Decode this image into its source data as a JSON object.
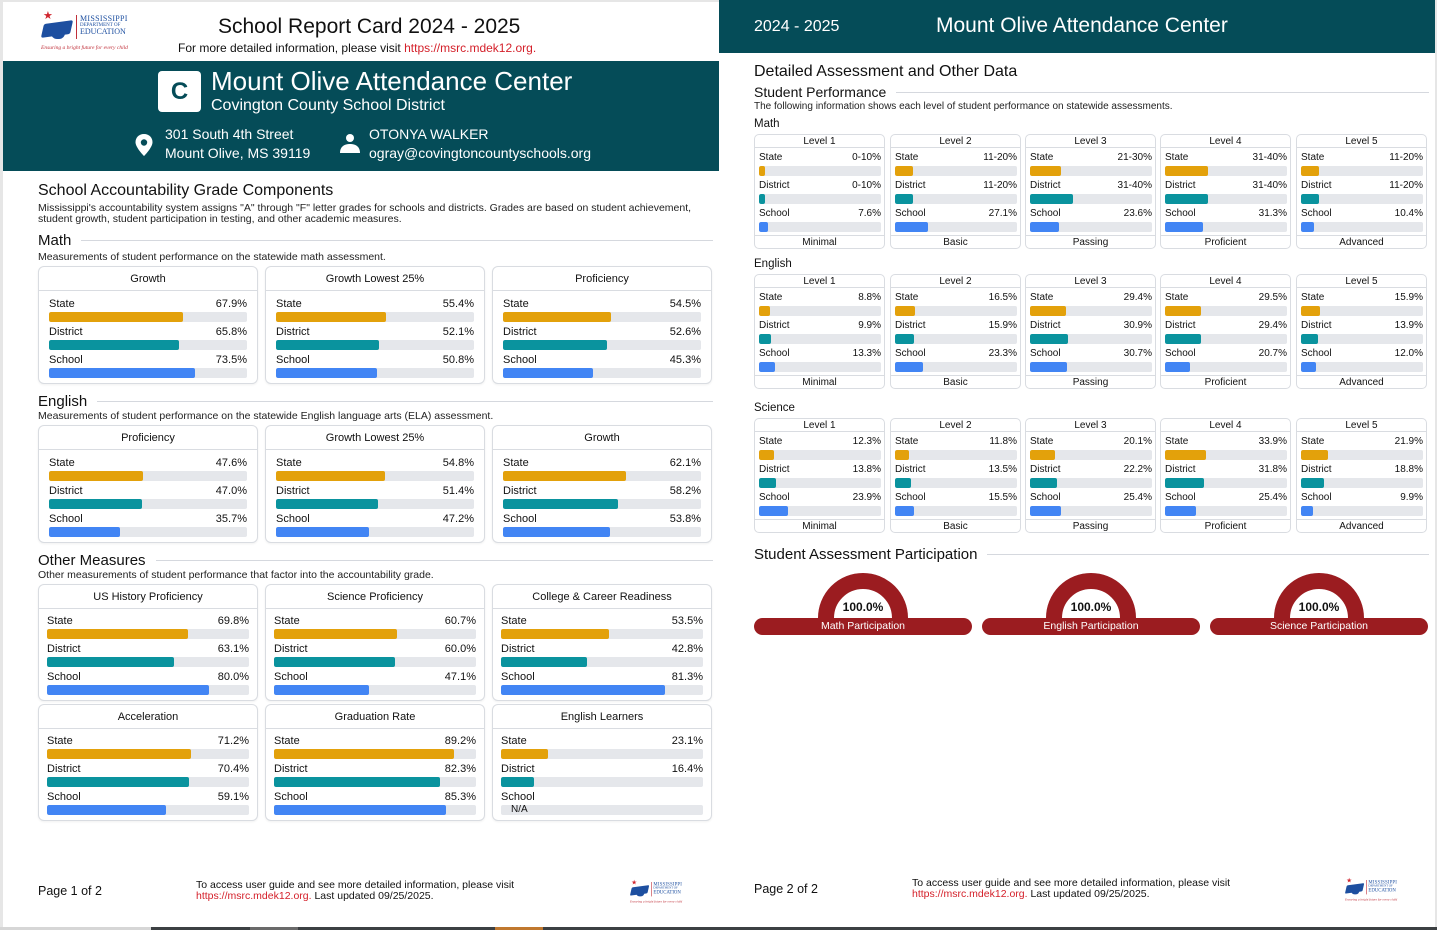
{
  "colors": {
    "brand": "#054c58",
    "state": "#e3a10b",
    "district": "#0a939e",
    "school": "#4285f4",
    "participation": "#9b1c20",
    "link": "#d4202a"
  },
  "logo": {
    "line1": "MISSISSIPPI",
    "line2": "DEPARTMENT OF",
    "line3": "EDUCATION",
    "tagline": "Ensuring a bright future for every child",
    "icon": "graduation-cap-icon"
  },
  "page1": {
    "title": "School Report Card 2024 - 2025",
    "subtitle_prefix": "For more detailed information, please visit ",
    "subtitle_link": "https://msrc.mdek12.org.",
    "grade": "C",
    "school_name": "Mount Olive Attendance Center",
    "district_name": "Covington County School District",
    "address_line1": "301 South 4th Street",
    "address_line2": "Mount Olive, MS 39119",
    "contact_name": "OTONYA WALKER",
    "contact_email": "ogray@covingtoncountyschools.org",
    "accountability": {
      "heading": "School Accountability Grade Components",
      "description": "Mississippi's accountability system assigns \"A\" through \"F\" letter grades for schools and districts. Grades are based on student achievement, student growth, student participation in testing, and other academic measures."
    },
    "sections": [
      {
        "title": "Math",
        "description": "Measurements of student performance on the statewide math assessment.",
        "cards": [
          {
            "title": "Growth",
            "rows": [
              {
                "label": "State",
                "value": "67.9%",
                "pct": 67.9
              },
              {
                "label": "District",
                "value": "65.8%",
                "pct": 65.8
              },
              {
                "label": "School",
                "value": "73.5%",
                "pct": 73.5
              }
            ]
          },
          {
            "title": "Growth Lowest 25%",
            "rows": [
              {
                "label": "State",
                "value": "55.4%",
                "pct": 55.4
              },
              {
                "label": "District",
                "value": "52.1%",
                "pct": 52.1
              },
              {
                "label": "School",
                "value": "50.8%",
                "pct": 50.8
              }
            ]
          },
          {
            "title": "Proficiency",
            "rows": [
              {
                "label": "State",
                "value": "54.5%",
                "pct": 54.5
              },
              {
                "label": "District",
                "value": "52.6%",
                "pct": 52.6
              },
              {
                "label": "School",
                "value": "45.3%",
                "pct": 45.3
              }
            ]
          }
        ]
      },
      {
        "title": "English",
        "description": "Measurements of student performance on the statewide English language arts (ELA) assessment.",
        "cards": [
          {
            "title": "Proficiency",
            "rows": [
              {
                "label": "State",
                "value": "47.6%",
                "pct": 47.6
              },
              {
                "label": "District",
                "value": "47.0%",
                "pct": 47.0
              },
              {
                "label": "School",
                "value": "35.7%",
                "pct": 35.7
              }
            ]
          },
          {
            "title": "Growth Lowest 25%",
            "rows": [
              {
                "label": "State",
                "value": "54.8%",
                "pct": 54.8
              },
              {
                "label": "District",
                "value": "51.4%",
                "pct": 51.4
              },
              {
                "label": "School",
                "value": "47.2%",
                "pct": 47.2
              }
            ]
          },
          {
            "title": "Growth",
            "rows": [
              {
                "label": "State",
                "value": "62.1%",
                "pct": 62.1
              },
              {
                "label": "District",
                "value": "58.2%",
                "pct": 58.2
              },
              {
                "label": "School",
                "value": "53.8%",
                "pct": 53.8
              }
            ]
          }
        ]
      },
      {
        "title": "Other Measures",
        "description": "Other measurements of student performance that factor into the accountability grade.",
        "cards": [
          {
            "title": "US History Proficiency",
            "rows": [
              {
                "label": "State",
                "value": "69.8%",
                "pct": 69.8
              },
              {
                "label": "District",
                "value": "63.1%",
                "pct": 63.1
              },
              {
                "label": "School",
                "value": "80.0%",
                "pct": 80.0
              }
            ]
          },
          {
            "title": "Science Proficiency",
            "rows": [
              {
                "label": "State",
                "value": "60.7%",
                "pct": 60.7
              },
              {
                "label": "District",
                "value": "60.0%",
                "pct": 60.0
              },
              {
                "label": "School",
                "value": "47.1%",
                "pct": 47.1
              }
            ]
          },
          {
            "title": "College & Career Readiness",
            "rows": [
              {
                "label": "State",
                "value": "53.5%",
                "pct": 53.5
              },
              {
                "label": "District",
                "value": "42.8%",
                "pct": 42.8
              },
              {
                "label": "School",
                "value": "81.3%",
                "pct": 81.3
              }
            ]
          },
          {
            "title": "Acceleration",
            "rows": [
              {
                "label": "State",
                "value": "71.2%",
                "pct": 71.2
              },
              {
                "label": "District",
                "value": "70.4%",
                "pct": 70.4
              },
              {
                "label": "School",
                "value": "59.1%",
                "pct": 59.1
              }
            ]
          },
          {
            "title": "Graduation Rate",
            "rows": [
              {
                "label": "State",
                "value": "89.2%",
                "pct": 89.2
              },
              {
                "label": "District",
                "value": "82.3%",
                "pct": 82.3
              },
              {
                "label": "School",
                "value": "85.3%",
                "pct": 85.3
              }
            ]
          },
          {
            "title": "English Learners",
            "rows": [
              {
                "label": "State",
                "value": "23.1%",
                "pct": 23.1
              },
              {
                "label": "District",
                "value": "16.4%",
                "pct": 16.4
              },
              {
                "label": "School",
                "value": "",
                "pct": null,
                "na": "N/A"
              }
            ]
          }
        ]
      }
    ],
    "footer": {
      "page": "Page 1 of 2",
      "text": "To access user guide and see more detailed information, please visit",
      "link": "https://msrc.mdek12.org.",
      "updated": " Last updated 09/25/2025."
    }
  },
  "page2": {
    "year": "2024 - 2025",
    "school_name": "Mount Olive Attendance Center",
    "heading": "Detailed Assessment and Other Data",
    "performance_title": "Student Performance",
    "performance_desc": "The following information shows each level of student performance on statewide assessments.",
    "subjects": [
      {
        "name": "Math",
        "levels": [
          {
            "level": "Level 1",
            "footer": "Minimal",
            "rows": [
              {
                "label": "State",
                "value": "0-10%",
                "pct": 5
              },
              {
                "label": "District",
                "value": "0-10%",
                "pct": 5
              },
              {
                "label": "School",
                "value": "7.6%",
                "pct": 7.6
              }
            ]
          },
          {
            "level": "Level 2",
            "footer": "Basic",
            "rows": [
              {
                "label": "State",
                "value": "11-20%",
                "pct": 15
              },
              {
                "label": "District",
                "value": "11-20%",
                "pct": 15
              },
              {
                "label": "School",
                "value": "27.1%",
                "pct": 27.1
              }
            ]
          },
          {
            "level": "Level 3",
            "footer": "Passing",
            "rows": [
              {
                "label": "State",
                "value": "21-30%",
                "pct": 25
              },
              {
                "label": "District",
                "value": "31-40%",
                "pct": 35
              },
              {
                "label": "School",
                "value": "23.6%",
                "pct": 23.6
              }
            ]
          },
          {
            "level": "Level 4",
            "footer": "Proficient",
            "rows": [
              {
                "label": "State",
                "value": "31-40%",
                "pct": 35
              },
              {
                "label": "District",
                "value": "31-40%",
                "pct": 35
              },
              {
                "label": "School",
                "value": "31.3%",
                "pct": 31.3
              }
            ]
          },
          {
            "level": "Level 5",
            "footer": "Advanced",
            "rows": [
              {
                "label": "State",
                "value": "11-20%",
                "pct": 15
              },
              {
                "label": "District",
                "value": "11-20%",
                "pct": 15
              },
              {
                "label": "School",
                "value": "10.4%",
                "pct": 10.4
              }
            ]
          }
        ]
      },
      {
        "name": "English",
        "levels": [
          {
            "level": "Level 1",
            "footer": "Minimal",
            "rows": [
              {
                "label": "State",
                "value": "8.8%",
                "pct": 8.8
              },
              {
                "label": "District",
                "value": "9.9%",
                "pct": 9.9
              },
              {
                "label": "School",
                "value": "13.3%",
                "pct": 13.3
              }
            ]
          },
          {
            "level": "Level 2",
            "footer": "Basic",
            "rows": [
              {
                "label": "State",
                "value": "16.5%",
                "pct": 16.5
              },
              {
                "label": "District",
                "value": "15.9%",
                "pct": 15.9
              },
              {
                "label": "School",
                "value": "23.3%",
                "pct": 23.3
              }
            ]
          },
          {
            "level": "Level 3",
            "footer": "Passing",
            "rows": [
              {
                "label": "State",
                "value": "29.4%",
                "pct": 29.4
              },
              {
                "label": "District",
                "value": "30.9%",
                "pct": 30.9
              },
              {
                "label": "School",
                "value": "30.7%",
                "pct": 30.7
              }
            ]
          },
          {
            "level": "Level 4",
            "footer": "Proficient",
            "rows": [
              {
                "label": "State",
                "value": "29.5%",
                "pct": 29.5
              },
              {
                "label": "District",
                "value": "29.4%",
                "pct": 29.4
              },
              {
                "label": "School",
                "value": "20.7%",
                "pct": 20.7
              }
            ]
          },
          {
            "level": "Level 5",
            "footer": "Advanced",
            "rows": [
              {
                "label": "State",
                "value": "15.9%",
                "pct": 15.9
              },
              {
                "label": "District",
                "value": "13.9%",
                "pct": 13.9
              },
              {
                "label": "School",
                "value": "12.0%",
                "pct": 12.0
              }
            ]
          }
        ]
      },
      {
        "name": "Science",
        "levels": [
          {
            "level": "Level 1",
            "footer": "Minimal",
            "rows": [
              {
                "label": "State",
                "value": "12.3%",
                "pct": 12.3
              },
              {
                "label": "District",
                "value": "13.8%",
                "pct": 13.8
              },
              {
                "label": "School",
                "value": "23.9%",
                "pct": 23.9
              }
            ]
          },
          {
            "level": "Level 2",
            "footer": "Basic",
            "rows": [
              {
                "label": "State",
                "value": "11.8%",
                "pct": 11.8
              },
              {
                "label": "District",
                "value": "13.5%",
                "pct": 13.5
              },
              {
                "label": "School",
                "value": "15.5%",
                "pct": 15.5
              }
            ]
          },
          {
            "level": "Level 3",
            "footer": "Passing",
            "rows": [
              {
                "label": "State",
                "value": "20.1%",
                "pct": 20.1
              },
              {
                "label": "District",
                "value": "22.2%",
                "pct": 22.2
              },
              {
                "label": "School",
                "value": "25.4%",
                "pct": 25.4
              }
            ]
          },
          {
            "level": "Level 4",
            "footer": "Proficient",
            "rows": [
              {
                "label": "State",
                "value": "33.9%",
                "pct": 33.9
              },
              {
                "label": "District",
                "value": "31.8%",
                "pct": 31.8
              },
              {
                "label": "School",
                "value": "25.4%",
                "pct": 25.4
              }
            ]
          },
          {
            "level": "Level 5",
            "footer": "Advanced",
            "rows": [
              {
                "label": "State",
                "value": "21.9%",
                "pct": 21.9
              },
              {
                "label": "District",
                "value": "18.8%",
                "pct": 18.8
              },
              {
                "label": "School",
                "value": "9.9%",
                "pct": 9.9
              }
            ]
          }
        ]
      }
    ],
    "participation": {
      "title": "Student Assessment Participation",
      "items": [
        {
          "label": "Math Participation",
          "value": "100.0%",
          "pct": 100
        },
        {
          "label": "English Participation",
          "value": "100.0%",
          "pct": 100
        },
        {
          "label": "Science Participation",
          "value": "100.0%",
          "pct": 100
        }
      ]
    },
    "footer": {
      "page": "Page 2 of 2",
      "text": "To access user guide and see more detailed information, please visit",
      "link": "https://msrc.mdek12.org.",
      "updated": " Last updated 09/25/2025."
    }
  }
}
